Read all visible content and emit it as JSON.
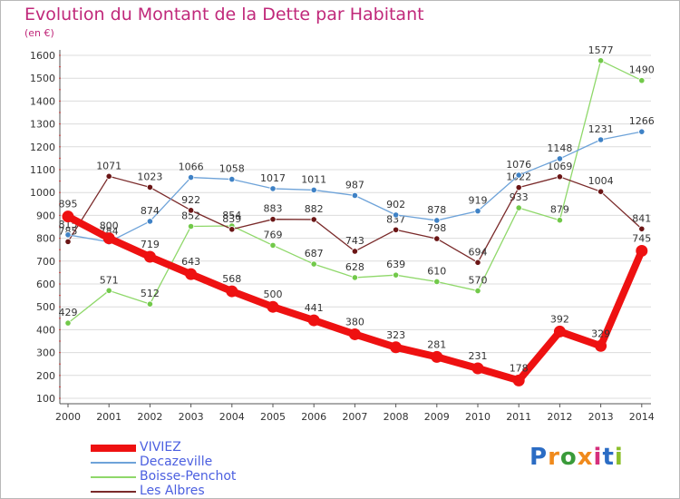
{
  "title": "Evolution du Montant de la Dette par Habitant",
  "unit": "(en €)",
  "brand": {
    "text": "Proxiti",
    "letters": [
      "P",
      "r",
      "o",
      "x",
      "i",
      "t",
      "i"
    ],
    "colors": [
      "#2b6cc4",
      "#f08a1c",
      "#3a9b3a",
      "#f08a1c",
      "#d62f7c",
      "#2b6cc4",
      "#8bbf2a"
    ]
  },
  "chart_data": {
    "type": "line",
    "title": "Evolution du Montant de la Dette par Habitant",
    "ylabel": "(en €)",
    "xlabel": "",
    "ylim": [
      100,
      1600
    ],
    "y_ticks": [
      100,
      200,
      300,
      400,
      500,
      600,
      700,
      800,
      900,
      1000,
      1100,
      1200,
      1300,
      1400,
      1500,
      1600
    ],
    "categories": [
      "2000",
      "2001",
      "2002",
      "2003",
      "2004",
      "2005",
      "2006",
      "2007",
      "2008",
      "2009",
      "2010",
      "2011",
      "2012",
      "2013",
      "2014"
    ],
    "legend_position": "bottom-left",
    "series": [
      {
        "name": "Boisse-Penchot",
        "color": "#8fd86a",
        "marker": "#72c94a",
        "values": [
          429,
          571,
          512,
          852,
          854,
          769,
          687,
          628,
          639,
          610,
          570,
          933,
          879,
          1577,
          1490
        ]
      },
      {
        "name": "Les Albres",
        "color": "#7a2a2a",
        "marker": "#6b1616",
        "values": [
          785,
          1071,
          1023,
          922,
          839,
          883,
          882,
          743,
          837,
          798,
          694,
          1022,
          1069,
          1004,
          841
        ]
      },
      {
        "name": "Decazeville",
        "color": "#6ea3d9",
        "marker": "#3f82c6",
        "values": [
          815,
          784,
          874,
          1066,
          1058,
          1017,
          1011,
          987,
          902,
          878,
          919,
          1076,
          1148,
          1231,
          1266
        ]
      },
      {
        "name": "VIVIEZ",
        "color": "#ee1111",
        "marker": "#ee1111",
        "values": [
          895,
          800,
          719,
          643,
          568,
          500,
          441,
          380,
          323,
          281,
          231,
          178,
          392,
          329,
          745
        ]
      }
    ]
  }
}
